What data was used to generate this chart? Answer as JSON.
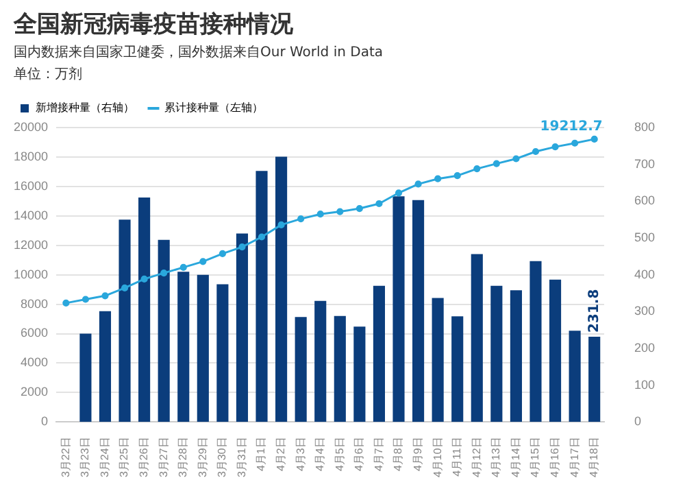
{
  "chart_data": {
    "type": "bar",
    "title": "全国新冠病毒疫苗接种情况",
    "subtitle": "国内数据来自国家卫健委，国外数据来自Our World in Data",
    "annotations": [
      "单位：万剂"
    ],
    "categories": [
      "3月22日",
      "3月23日",
      "3月24日",
      "3月25日",
      "3月26日",
      "3月27日",
      "3月28日",
      "3月29日",
      "3月30日",
      "3月31日",
      "4月1日",
      "4月2日",
      "4月3日",
      "4月4日",
      "4月5日",
      "4月6日",
      "4月7日",
      "4月8日",
      "4月9日",
      "4月10日",
      "4月11日",
      "4月12日",
      "4月13日",
      "4月14日",
      "4月15日",
      "4月16日",
      "4月17日",
      "4月18日"
    ],
    "series": [
      {
        "name": "新增接种量（右轴）",
        "axis": "y2",
        "color": "#0b3d7c",
        "values": [
          null,
          240,
          301,
          550,
          610,
          495,
          408,
          400,
          374,
          512,
          682,
          721,
          285,
          329,
          288,
          259,
          370,
          613,
          603,
          337,
          287,
          456,
          370,
          358,
          437,
          387,
          248,
          231.8
        ],
        "value_labels": [
          null,
          null,
          null,
          null,
          null,
          null,
          null,
          null,
          null,
          null,
          null,
          null,
          null,
          null,
          null,
          null,
          null,
          null,
          null,
          null,
          null,
          null,
          null,
          null,
          null,
          null,
          null,
          "231.8"
        ]
      },
      {
        "name": "累计接种量（左轴）",
        "type": "line",
        "axis": "y",
        "color": "#2aa7dc",
        "values": [
          8080,
          8330,
          8570,
          9100,
          9710,
          10120,
          10500,
          10900,
          11430,
          11890,
          12570,
          13390,
          13800,
          14120,
          14290,
          14500,
          14830,
          15560,
          16160,
          16520,
          16730,
          17200,
          17550,
          17880,
          18370,
          18690,
          18940,
          19212.7
        ],
        "value_labels": [
          null,
          null,
          null,
          null,
          null,
          null,
          null,
          null,
          null,
          null,
          null,
          null,
          null,
          null,
          null,
          null,
          null,
          null,
          null,
          null,
          null,
          null,
          null,
          null,
          null,
          null,
          null,
          "19212.7"
        ]
      }
    ],
    "ylim": [
      0,
      20000
    ],
    "yticks": [
      0,
      2000,
      4000,
      6000,
      8000,
      10000,
      12000,
      14000,
      16000,
      18000,
      20000
    ],
    "y2lim": [
      0,
      800
    ],
    "y2ticks": [
      0,
      100,
      200,
      300,
      400,
      500,
      600,
      700,
      800
    ],
    "grid": "y",
    "legend": "top left",
    "marker": "circle"
  }
}
